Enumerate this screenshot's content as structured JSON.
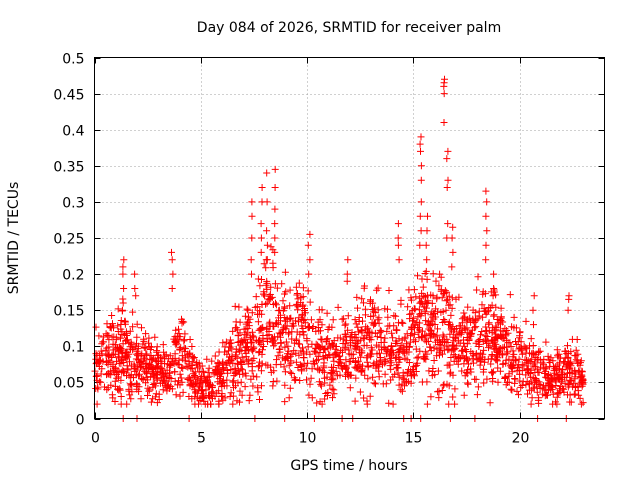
{
  "chart_data": {
    "type": "scatter",
    "title": "Day 084 of 2026, SRMTID for receiver palm",
    "xlabel": "GPS time / hours",
    "ylabel": "SRMTID / TECUs",
    "xlim": [
      0,
      24
    ],
    "ylim": [
      0,
      0.5
    ],
    "x_ticks": [
      0,
      5,
      10,
      15,
      20
    ],
    "x_tick_labels": [
      "0",
      "5",
      "10",
      "15",
      "20"
    ],
    "y_ticks": [
      0,
      0.05,
      0.1,
      0.15,
      0.2,
      0.25,
      0.3,
      0.35,
      0.4,
      0.45,
      0.5
    ],
    "y_tick_labels": [
      "0",
      "0.05",
      "0.1",
      "0.15",
      "0.2",
      "0.25",
      "0.3",
      "0.35",
      "0.4",
      "0.45",
      "0.5"
    ],
    "grid": true,
    "marker": "+",
    "color": "#ff0000",
    "time_range": [
      0,
      23
    ],
    "background_trend": {
      "x": [
        0,
        0.5,
        1,
        1.5,
        2,
        2.5,
        3,
        3.5,
        4,
        4.5,
        5,
        5.5,
        6,
        6.5,
        7,
        7.5,
        8,
        8.5,
        9,
        9.5,
        10,
        10.5,
        11,
        11.5,
        12,
        12.5,
        13,
        13.5,
        14,
        14.5,
        15,
        15.5,
        16,
        16.5,
        17,
        17.5,
        18,
        18.5,
        19,
        19.5,
        20,
        20.5,
        21,
        21.5,
        22,
        22.5,
        23
      ],
      "y": [
        0.07,
        0.08,
        0.09,
        0.1,
        0.075,
        0.07,
        0.065,
        0.06,
        0.09,
        0.07,
        0.05,
        0.045,
        0.065,
        0.08,
        0.085,
        0.1,
        0.14,
        0.13,
        0.11,
        0.12,
        0.11,
        0.095,
        0.08,
        0.085,
        0.09,
        0.1,
        0.105,
        0.11,
        0.1,
        0.09,
        0.11,
        0.13,
        0.12,
        0.12,
        0.1,
        0.095,
        0.11,
        0.12,
        0.1,
        0.09,
        0.08,
        0.07,
        0.06,
        0.055,
        0.06,
        0.065,
        0.055
      ]
    },
    "spikes": [
      {
        "x": 1.35,
        "values": [
          0.22,
          0.21,
          0.2,
          0.18,
          0.16,
          0.15
        ]
      },
      {
        "x": 1.9,
        "values": [
          0.2,
          0.18,
          0.17
        ]
      },
      {
        "x": 3.65,
        "values": [
          0.23,
          0.22,
          0.2,
          0.18
        ]
      },
      {
        "x": 7.4,
        "values": [
          0.3,
          0.28,
          0.25,
          0.22,
          0.2
        ]
      },
      {
        "x": 7.85,
        "values": [
          0.32,
          0.3,
          0.27,
          0.25,
          0.23
        ]
      },
      {
        "x": 8.1,
        "values": [
          0.34,
          0.3,
          0.26,
          0.24,
          0.22
        ]
      },
      {
        "x": 8.5,
        "values": [
          0.345,
          0.32,
          0.29,
          0.27,
          0.25,
          0.23
        ]
      },
      {
        "x": 10.1,
        "values": [
          0.255,
          0.24,
          0.22,
          0.2
        ]
      },
      {
        "x": 11.9,
        "values": [
          0.22,
          0.2,
          0.19
        ]
      },
      {
        "x": 14.3,
        "values": [
          0.27,
          0.25,
          0.24,
          0.22
        ]
      },
      {
        "x": 15.35,
        "values": [
          0.39,
          0.38,
          0.37,
          0.35,
          0.33,
          0.3,
          0.28,
          0.26,
          0.24
        ]
      },
      {
        "x": 15.65,
        "values": [
          0.28,
          0.26,
          0.24,
          0.22
        ]
      },
      {
        "x": 16.45,
        "values": [
          0.47,
          0.465,
          0.46,
          0.45,
          0.41
        ]
      },
      {
        "x": 16.6,
        "values": [
          0.37,
          0.36,
          0.33,
          0.32,
          0.27,
          0.25
        ]
      },
      {
        "x": 16.85,
        "values": [
          0.265,
          0.25,
          0.23,
          0.21
        ]
      },
      {
        "x": 18.45,
        "values": [
          0.315,
          0.3,
          0.28,
          0.26,
          0.24,
          0.22
        ]
      },
      {
        "x": 18.75,
        "values": [
          0.2,
          0.18,
          0.17
        ]
      },
      {
        "x": 20.65,
        "values": [
          0.17,
          0.15,
          0.13
        ]
      },
      {
        "x": 22.3,
        "values": [
          0.17,
          0.165,
          0.15
        ]
      }
    ],
    "zero_points_x": [
      1.35,
      2.0,
      4.45,
      7.55,
      8.95,
      10.35,
      11.65,
      12.15,
      14.55,
      14.9,
      15.35,
      16.75,
      17.9,
      20.85,
      22.2
    ]
  }
}
